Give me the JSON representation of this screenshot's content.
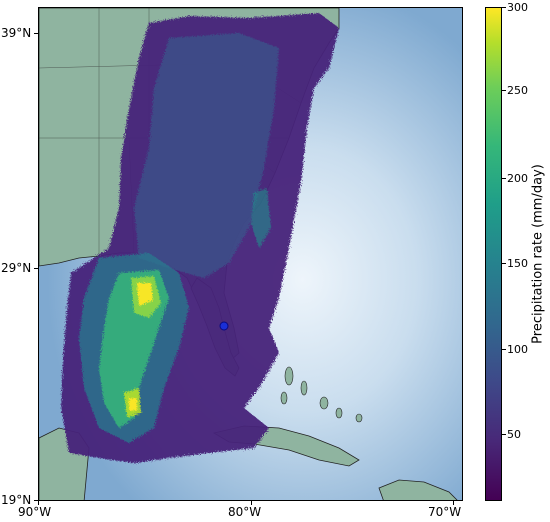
{
  "map": {
    "latitude_labels": [
      "39°N",
      "29°N",
      "19°N"
    ],
    "longitude_labels": [
      "90°W",
      "80°W",
      "70°W"
    ],
    "marker_color": "#1a2fd6",
    "land_color": "#8fb4a0",
    "ocean_color": "#9cc3e0"
  },
  "colorbar": {
    "title": "Precipitation rate (mm/day)",
    "ticks": [
      "300",
      "250",
      "200",
      "150",
      "100",
      "50"
    ],
    "colormap": "viridis"
  }
}
